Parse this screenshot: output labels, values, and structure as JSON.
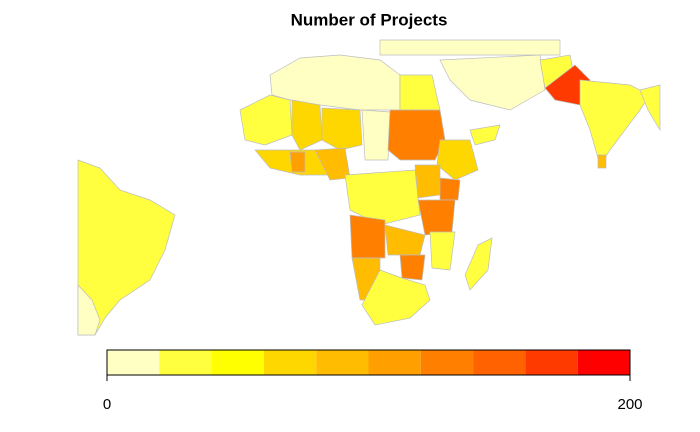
{
  "chart_data": {
    "type": "choropleth",
    "title": "Number of Projects",
    "colors": [
      "#FFFFC4",
      "#FFFF40",
      "#FFFF00",
      "#FFD700",
      "#FFBC00",
      "#FF9F00",
      "#FF8000",
      "#FF6200",
      "#FF3A00",
      "#FF0000"
    ],
    "xlim": [
      0,
      200
    ],
    "xticks": [
      0,
      200
    ]
  }
}
